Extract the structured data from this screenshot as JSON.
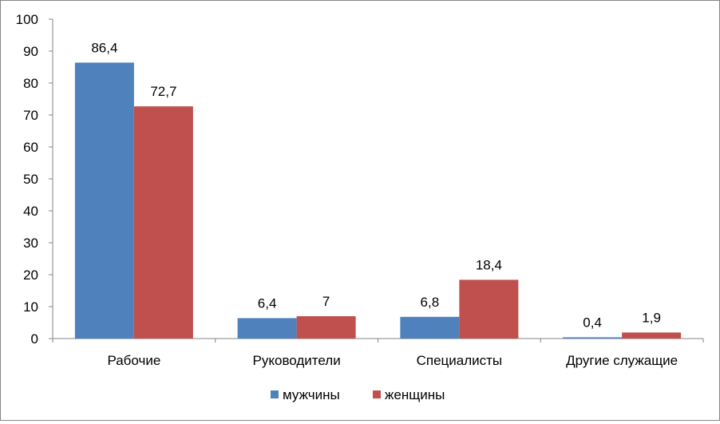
{
  "chart_data": {
    "type": "bar",
    "categories": [
      "Рабочие",
      "Руководители",
      "Специалисты",
      "Другие служащие"
    ],
    "series": [
      {
        "name": "мужчины",
        "values": [
          86.4,
          6.4,
          6.8,
          0.4
        ],
        "labels": [
          "86,4",
          "6,4",
          "6,8",
          "0,4"
        ],
        "color": "#4F81BD"
      },
      {
        "name": "женщины",
        "values": [
          72.7,
          7,
          18.4,
          1.9
        ],
        "labels": [
          "72,7",
          "7",
          "18,4",
          "1,9"
        ],
        "color": "#C0504D"
      }
    ],
    "y_ticks": [
      "0",
      "10",
      "20",
      "30",
      "40",
      "50",
      "60",
      "70",
      "80",
      "90",
      "100"
    ],
    "ylim": [
      0,
      100
    ],
    "grid": false,
    "legend_position": "bottom"
  }
}
